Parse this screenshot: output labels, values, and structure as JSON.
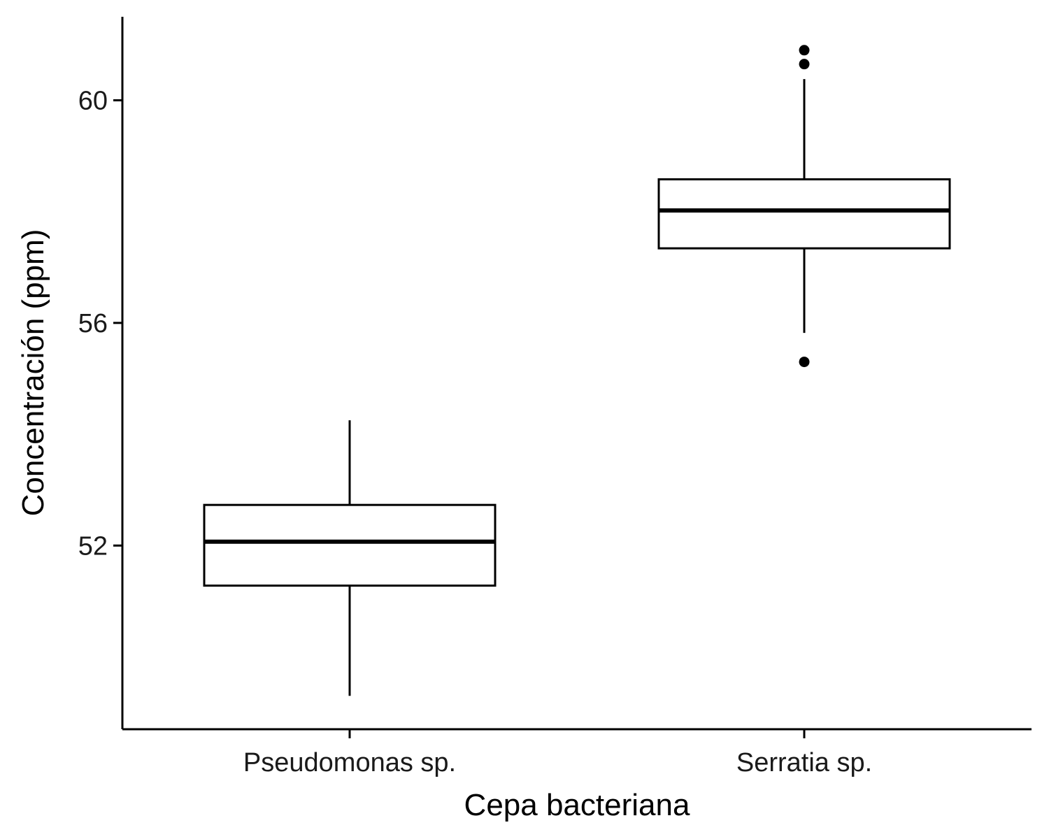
{
  "chart_data": {
    "type": "boxplot",
    "title": "",
    "xlabel": "Cepa bacteriana",
    "ylabel": "Concentración (ppm)",
    "ylim": [
      48.7,
      61.5
    ],
    "yticks": [
      {
        "value": 52,
        "label": "52"
      },
      {
        "value": 56,
        "label": "56"
      },
      {
        "value": 60,
        "label": "60"
      }
    ],
    "grid": false,
    "legend": "none",
    "categories": [
      "Pseudomonas sp.",
      "Serratia sp."
    ],
    "boxes": [
      {
        "category": "Pseudomonas sp.",
        "whisker_low": 49.3,
        "q1": 51.28,
        "median": 52.07,
        "q3": 52.73,
        "whisker_high": 54.25,
        "outliers": []
      },
      {
        "category": "Serratia sp.",
        "whisker_low": 55.82,
        "q1": 57.34,
        "median": 58.02,
        "q3": 58.58,
        "whisker_high": 60.38,
        "outliers": [
          55.3,
          60.65,
          60.9
        ]
      }
    ],
    "colors": {
      "line": "#000000",
      "fill": "#ffffff"
    }
  }
}
